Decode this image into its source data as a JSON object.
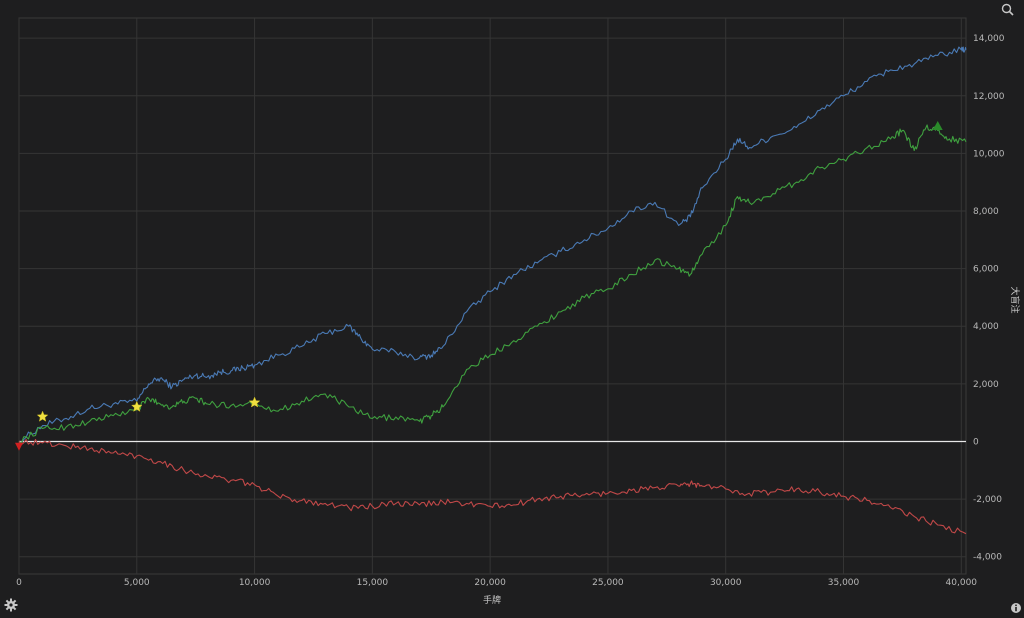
{
  "chart_data": {
    "type": "line",
    "xlabel": "手牌",
    "ylabel": "大盲注",
    "xlim": [
      0,
      40200
    ],
    "ylim": [
      -4600,
      14700
    ],
    "x_ticks": [
      0,
      5000,
      10000,
      15000,
      20000,
      25000,
      30000,
      35000,
      40000
    ],
    "x_tick_labels": [
      "0",
      "5,000",
      "10,000",
      "15,000",
      "20,000",
      "25,000",
      "30,000",
      "35,000",
      "40,000"
    ],
    "y_ticks": [
      -4000,
      -2000,
      0,
      2000,
      4000,
      6000,
      8000,
      10000,
      12000,
      14000
    ],
    "y_tick_labels": [
      "-4,000",
      "-2,000",
      "0",
      "2,000",
      "4,000",
      "6,000",
      "8,000",
      "10,000",
      "12,000",
      "14,000"
    ],
    "grid": true,
    "zero_line": true,
    "series": [
      {
        "color": "#4a7ab5",
        "x": [
          0,
          1000,
          2000,
          3000,
          4000,
          5000,
          5500,
          6000,
          6500,
          7000,
          7500,
          8000,
          8500,
          9000,
          9500,
          10000,
          11000,
          12000,
          13000,
          14000,
          14500,
          15000,
          16000,
          17000,
          17500,
          18000,
          19000,
          20000,
          21000,
          22000,
          23000,
          24000,
          25000,
          26000,
          27000,
          28000,
          28500,
          29000,
          30000,
          30500,
          31000,
          32000,
          33000,
          34000,
          35000,
          36000,
          37000,
          38000,
          39000,
          40000,
          40200
        ],
        "values": [
          0,
          550,
          800,
          1150,
          1300,
          1400,
          2000,
          2200,
          1900,
          2150,
          2300,
          2250,
          2400,
          2450,
          2550,
          2650,
          3000,
          3300,
          3750,
          4000,
          3600,
          3200,
          3100,
          2900,
          3000,
          3300,
          4500,
          5200,
          5800,
          6200,
          6600,
          7000,
          7400,
          8000,
          8300,
          7500,
          7800,
          8800,
          9800,
          10500,
          10200,
          10600,
          10900,
          11500,
          12000,
          12500,
          12900,
          13100,
          13400,
          13600,
          13600
        ]
      },
      {
        "color": "#3fa03f",
        "x": [
          0,
          1000,
          2000,
          3000,
          4000,
          5000,
          5500,
          6000,
          6500,
          7000,
          7500,
          8000,
          9000,
          10000,
          11000,
          12000,
          13000,
          14000,
          15000,
          16000,
          17000,
          17500,
          18000,
          19000,
          20000,
          21000,
          22000,
          23000,
          24000,
          25000,
          26000,
          27000,
          28000,
          28500,
          29000,
          30000,
          30500,
          31000,
          32000,
          33000,
          34000,
          35000,
          36000,
          37000,
          37500,
          38000,
          38500,
          39000,
          39500,
          40200
        ],
        "values": [
          0,
          450,
          500,
          700,
          900,
          1100,
          1500,
          1300,
          1200,
          1400,
          1500,
          1300,
          1250,
          1350,
          1050,
          1400,
          1650,
          1200,
          800,
          850,
          700,
          900,
          1200,
          2500,
          3000,
          3500,
          4000,
          4500,
          5000,
          5300,
          5800,
          6300,
          6000,
          5800,
          6500,
          7500,
          8500,
          8300,
          8600,
          9000,
          9500,
          9800,
          10200,
          10500,
          10800,
          10100,
          10900,
          10800,
          10500,
          10400
        ]
      },
      {
        "color": "#c04848",
        "x": [
          0,
          1000,
          2000,
          3000,
          4000,
          5000,
          6000,
          7000,
          8000,
          9000,
          10000,
          11000,
          12000,
          13000,
          14000,
          15000,
          16000,
          17000,
          18000,
          19000,
          20000,
          21000,
          22000,
          23000,
          24000,
          25000,
          26000,
          27000,
          28000,
          28500,
          29000,
          30000,
          31000,
          32000,
          33000,
          34000,
          35000,
          36000,
          37000,
          38000,
          39000,
          40200
        ],
        "values": [
          0,
          -50,
          -150,
          -250,
          -400,
          -500,
          -700,
          -1000,
          -1200,
          -1350,
          -1500,
          -1900,
          -2050,
          -2150,
          -2300,
          -2250,
          -2150,
          -2200,
          -2100,
          -2150,
          -2250,
          -2200,
          -2000,
          -1900,
          -1850,
          -1800,
          -1700,
          -1600,
          -1550,
          -1450,
          -1550,
          -1650,
          -1800,
          -1750,
          -1650,
          -1750,
          -1900,
          -2050,
          -2300,
          -2600,
          -2900,
          -3200
        ]
      }
    ],
    "star_markers": [
      {
        "x": 1000,
        "y": 860
      },
      {
        "x": 5000,
        "y": 1200
      },
      {
        "x": 10000,
        "y": 1350
      }
    ],
    "peak_marker": {
      "x": 39000,
      "y": 10950,
      "color": "#2a8a2a"
    },
    "start_marker": {
      "x": 0,
      "y": -150,
      "color": "#d02020"
    }
  },
  "icons": {
    "zoom": "zoom-icon",
    "settings": "gear-icon",
    "info": "info-icon"
  }
}
